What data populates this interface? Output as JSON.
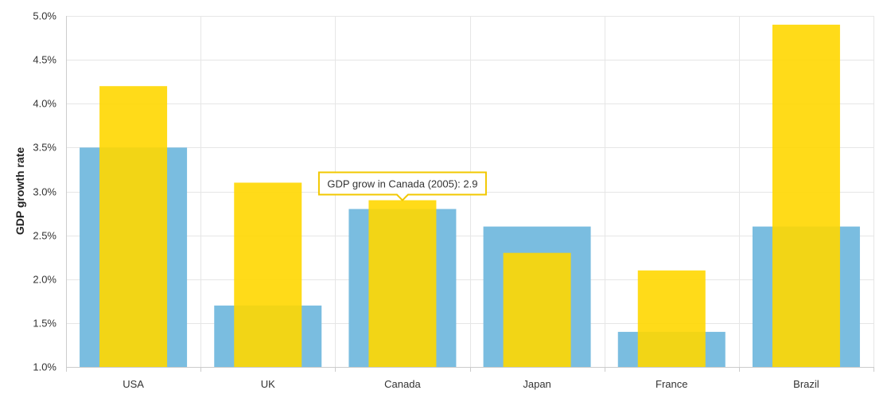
{
  "chart_data": {
    "type": "bar",
    "ylabel": "GDP growth rate",
    "ylim": [
      1.0,
      5.0
    ],
    "yticks": [
      "1.0%",
      "1.5%",
      "2.0%",
      "2.5%",
      "3.0%",
      "3.5%",
      "4.0%",
      "4.5%",
      "5.0%"
    ],
    "categories": [
      "USA",
      "UK",
      "Canada",
      "Japan",
      "France",
      "Brazil"
    ],
    "series": [
      {
        "values": [
          3.5,
          1.7,
          2.8,
          2.6,
          1.4,
          2.6
        ],
        "color": "#7abde0"
      },
      {
        "values": [
          4.2,
          3.1,
          2.9,
          2.3,
          2.1,
          4.9
        ],
        "color": "#ffd700"
      }
    ],
    "grid": true,
    "tooltip": {
      "text": "GDP grow in Canada (2005): 2.9",
      "category_index": 2,
      "series_index": 1
    }
  }
}
